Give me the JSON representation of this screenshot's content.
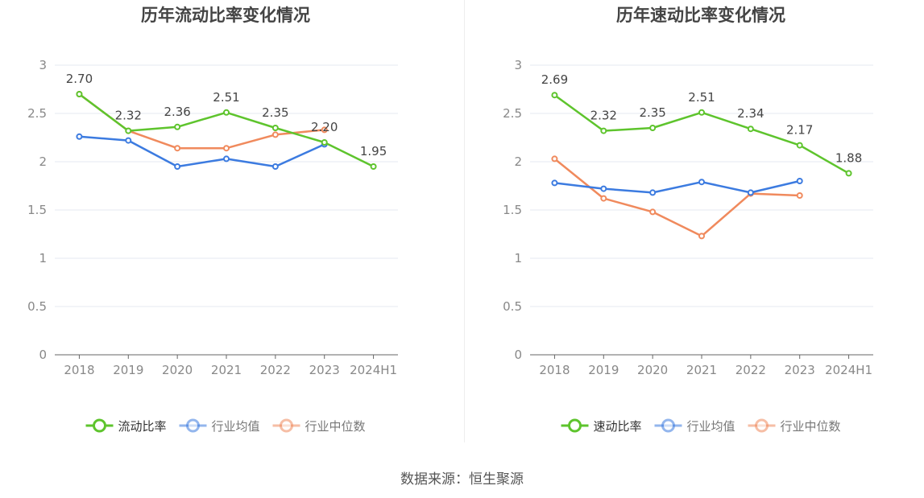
{
  "colors": {
    "primary": "#5ec42d",
    "average": "#3c7be0",
    "median": "#f08a5d",
    "grid": "#e6e9f0",
    "axis": "#666666",
    "tick_text": "#888888",
    "title": "#444444",
    "label": "#444444"
  },
  "source_text": "数据来源：恒生聚源",
  "chart_data": [
    {
      "type": "line",
      "title": "历年流动比率变化情况",
      "categories": [
        "2018",
        "2019",
        "2020",
        "2021",
        "2022",
        "2023",
        "2024H1"
      ],
      "ylim": [
        0,
        3
      ],
      "yticks": [
        "0",
        "0.5",
        "1",
        "1.5",
        "2",
        "2.5",
        "3"
      ],
      "grid": true,
      "legend_position": "bottom-center",
      "series": [
        {
          "name": "流动比率",
          "color_key": "primary",
          "values": [
            2.7,
            2.32,
            2.36,
            2.51,
            2.35,
            2.2,
            1.95
          ],
          "labels": [
            "2.70",
            "2.32",
            "2.36",
            "2.51",
            "2.35",
            "2.20",
            "1.95"
          ]
        },
        {
          "name": "行业均值",
          "color_key": "average",
          "values": [
            2.26,
            2.22,
            1.95,
            2.03,
            1.95,
            2.18,
            null
          ]
        },
        {
          "name": "行业中位数",
          "color_key": "median",
          "values": [
            2.7,
            2.32,
            2.14,
            2.14,
            2.28,
            2.33,
            null
          ]
        }
      ]
    },
    {
      "type": "line",
      "title": "历年速动比率变化情况",
      "categories": [
        "2018",
        "2019",
        "2020",
        "2021",
        "2022",
        "2023",
        "2024H1"
      ],
      "ylim": [
        0,
        3
      ],
      "yticks": [
        "0",
        "0.5",
        "1",
        "1.5",
        "2",
        "2.5",
        "3"
      ],
      "grid": true,
      "legend_position": "bottom-center",
      "series": [
        {
          "name": "速动比率",
          "color_key": "primary",
          "values": [
            2.69,
            2.32,
            2.35,
            2.51,
            2.34,
            2.17,
            1.88
          ],
          "labels": [
            "2.69",
            "2.32",
            "2.35",
            "2.51",
            "2.34",
            "2.17",
            "1.88"
          ]
        },
        {
          "name": "行业均值",
          "color_key": "average",
          "values": [
            1.78,
            1.72,
            1.68,
            1.79,
            1.68,
            1.8,
            null
          ]
        },
        {
          "name": "行业中位数",
          "color_key": "median",
          "values": [
            2.03,
            1.62,
            1.48,
            1.23,
            1.67,
            1.65,
            null
          ]
        }
      ]
    }
  ]
}
